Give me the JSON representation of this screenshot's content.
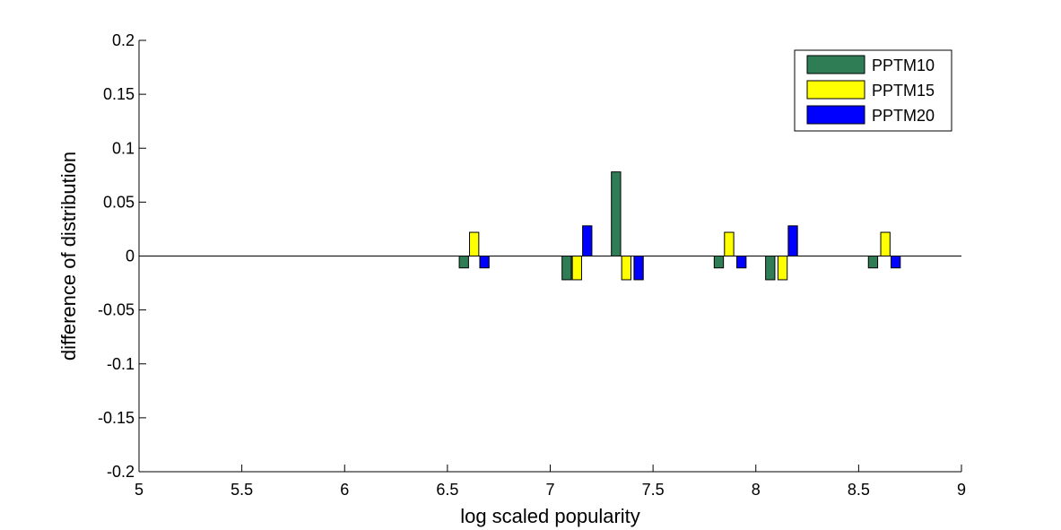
{
  "chart_data": {
    "type": "bar",
    "xlabel": "log scaled popularity",
    "ylabel": "difference of distribution",
    "xlim": [
      5,
      9
    ],
    "ylim": [
      -0.2,
      0.2
    ],
    "xticks": [
      5,
      5.5,
      6,
      6.5,
      7,
      7.5,
      8,
      8.5,
      9
    ],
    "xtick_labels": [
      "5",
      "5.5",
      "6",
      "6.5",
      "7",
      "7.5",
      "8",
      "8.5",
      "9"
    ],
    "yticks": [
      -0.2,
      -0.15,
      -0.1,
      -0.05,
      0,
      0.05,
      0.1,
      0.15,
      0.2
    ],
    "ytick_labels": [
      "-0.2",
      "-0.15",
      "-0.1",
      "-0.05",
      "0",
      "0.05",
      "0.1",
      "0.15",
      "0.2"
    ],
    "grid": false,
    "legend_position": "top-right",
    "bar_width": 0.045,
    "series": [
      {
        "name": "PPTM10",
        "color": "#2e7d55",
        "x": [
          6.58,
          7.08,
          7.32,
          7.82,
          8.07,
          8.57
        ],
        "values": [
          -0.011,
          -0.022,
          0.078,
          -0.011,
          -0.022,
          -0.011
        ]
      },
      {
        "name": "PPTM15",
        "color": "#ffff00",
        "x": [
          6.63,
          7.13,
          7.37,
          7.87,
          8.13,
          8.63
        ],
        "values": [
          0.022,
          -0.022,
          -0.022,
          0.022,
          -0.022,
          0.022
        ]
      },
      {
        "name": "PPTM20",
        "color": "#0000ff",
        "x": [
          6.68,
          7.18,
          7.43,
          7.93,
          8.18,
          8.68
        ],
        "values": [
          -0.011,
          0.028,
          -0.022,
          -0.011,
          0.028,
          -0.011
        ]
      }
    ]
  }
}
